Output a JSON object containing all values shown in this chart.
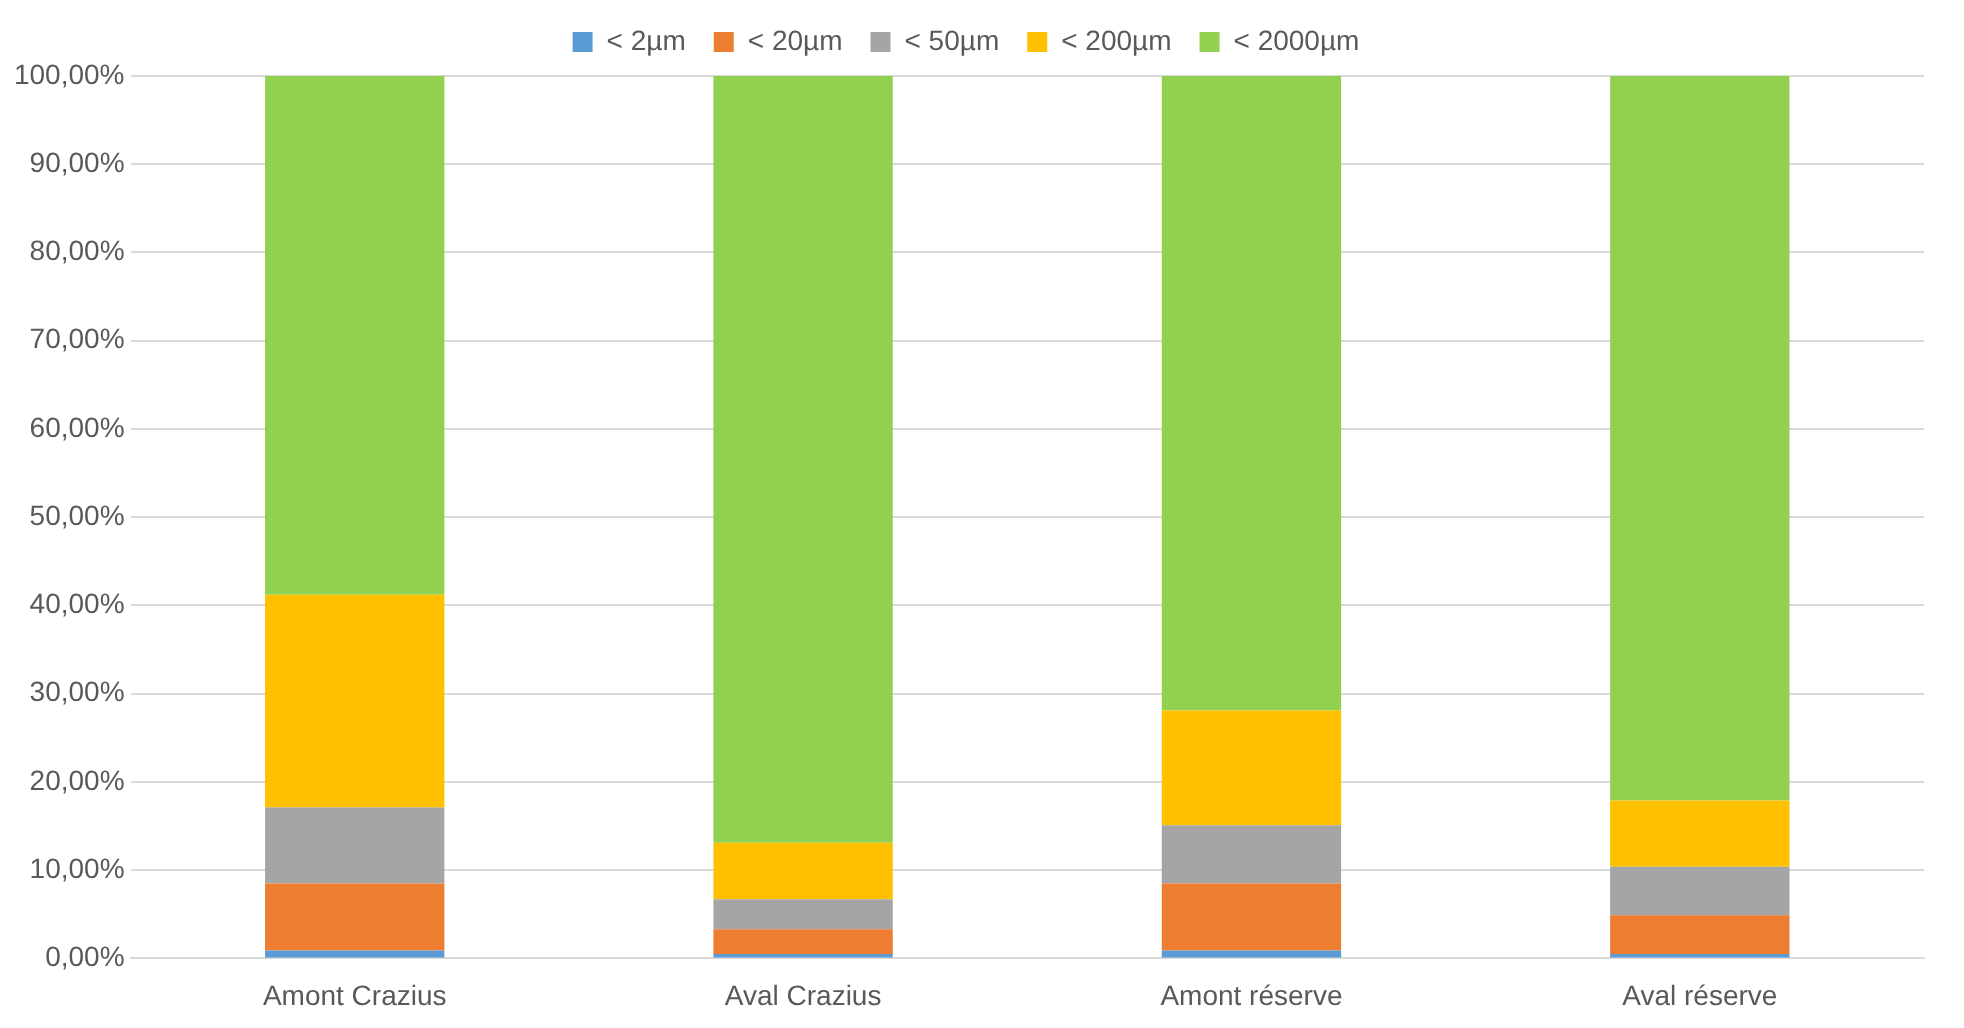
{
  "chart_data": {
    "type": "bar",
    "stacked": true,
    "categories": [
      "Amont Crazius",
      "Aval Crazius",
      "Amont réserve",
      "Aval réserve"
    ],
    "series": [
      {
        "name": "< 2µm",
        "color": "#5b9bd5",
        "values": [
          0.9,
          0.5,
          0.9,
          0.5
        ]
      },
      {
        "name": "< 20µm",
        "color": "#ed7d31",
        "values": [
          7.6,
          2.8,
          7.6,
          4.4
        ]
      },
      {
        "name": "< 50µm",
        "color": "#a5a5a5",
        "values": [
          8.6,
          3.4,
          6.6,
          5.5
        ]
      },
      {
        "name": "< 200µm",
        "color": "#ffc000",
        "values": [
          24.1,
          6.4,
          13.0,
          7.5
        ]
      },
      {
        "name": "< 2000µm",
        "color": "#92d050",
        "values": [
          58.8,
          86.9,
          71.9,
          82.1
        ]
      }
    ],
    "ylim": [
      0,
      100
    ],
    "yticks": [
      {
        "value": 0,
        "label": "0,00%"
      },
      {
        "value": 10,
        "label": "10,00%"
      },
      {
        "value": 20,
        "label": "20,00%"
      },
      {
        "value": 30,
        "label": "30,00%"
      },
      {
        "value": 40,
        "label": "40,00%"
      },
      {
        "value": 50,
        "label": "50,00%"
      },
      {
        "value": 60,
        "label": "60,00%"
      },
      {
        "value": 70,
        "label": "70,00%"
      },
      {
        "value": 80,
        "label": "80,00%"
      },
      {
        "value": 90,
        "label": "90,00%"
      },
      {
        "value": 100,
        "label": "100,00%"
      }
    ],
    "grid": "y",
    "legend": "top"
  }
}
